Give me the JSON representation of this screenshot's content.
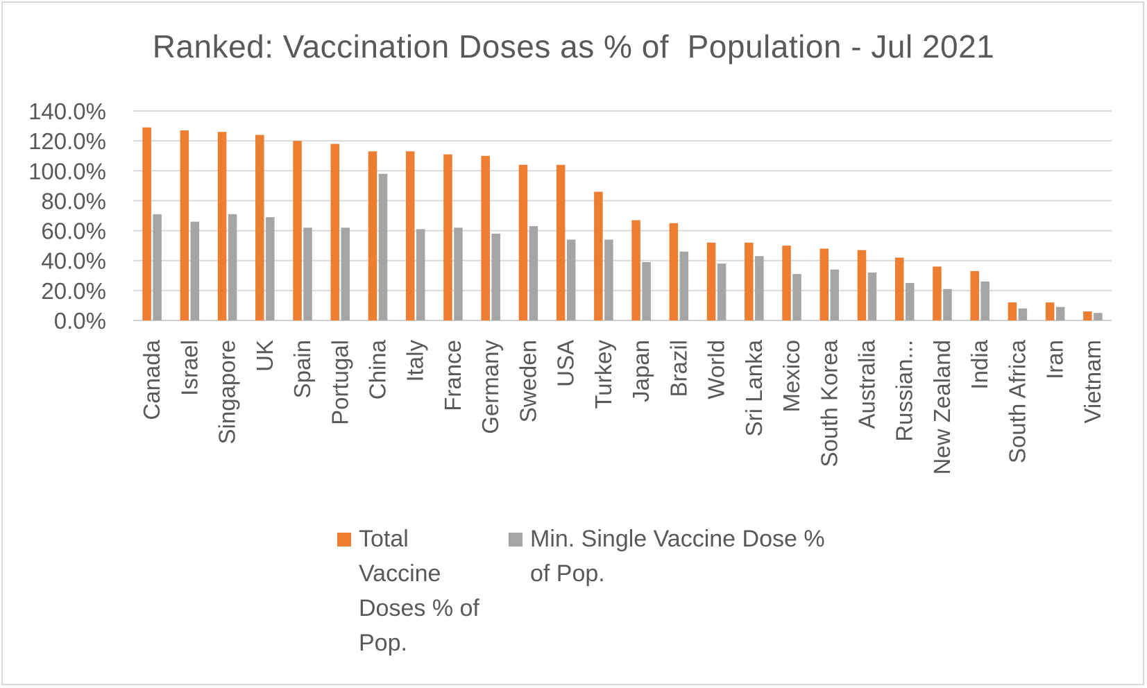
{
  "chart_data": {
    "type": "bar",
    "title": "Ranked: Vaccination Doses as % of  Population - Jul 2021",
    "xlabel": "",
    "ylabel": "",
    "ylim": [
      0,
      140
    ],
    "yticks": [
      0,
      20,
      40,
      60,
      80,
      100,
      120,
      140
    ],
    "ytick_labels": [
      "0.0%",
      "20.0%",
      "40.0%",
      "60.0%",
      "80.0%",
      "100.0%",
      "120.0%",
      "140.0%"
    ],
    "grid": true,
    "legend_position": "bottom",
    "categories": [
      "Canada",
      "Israel",
      "Singapore",
      "UK",
      "Spain",
      "Portugal",
      "China",
      "Italy",
      "France",
      "Germany",
      "Sweden",
      "USA",
      "Turkey",
      "Japan",
      "Brazil",
      "World",
      "Sri Lanka",
      "Mexico",
      "South Korea",
      "Australia",
      "Russian...",
      "New Zealand",
      "India",
      "South Africa",
      "Iran",
      "Vietnam"
    ],
    "series": [
      {
        "name": "Total Vaccine Doses % of Pop.",
        "color": "#ED7D31",
        "values": [
          129,
          127,
          126,
          124,
          120,
          118,
          113,
          113,
          111,
          110,
          104,
          104,
          86,
          67,
          65,
          52,
          52,
          50,
          48,
          47,
          42,
          36,
          33,
          12,
          12,
          6
        ]
      },
      {
        "name": "Min. Single Vaccine Dose % of Pop.",
        "color": "#A5A5A5",
        "values": [
          71,
          66,
          71,
          69,
          62,
          62,
          98,
          61,
          62,
          58,
          63,
          54,
          54,
          39,
          46,
          38,
          43,
          31,
          34,
          32,
          25,
          21,
          26,
          8,
          9,
          5
        ]
      }
    ]
  },
  "legend": {
    "items": [
      {
        "text": "Total Vaccine Doses % of Pop.",
        "color": "#ED7D31"
      },
      {
        "text": "Min. Single Vaccine Dose % of Pop.",
        "color": "#A5A5A5"
      }
    ]
  }
}
